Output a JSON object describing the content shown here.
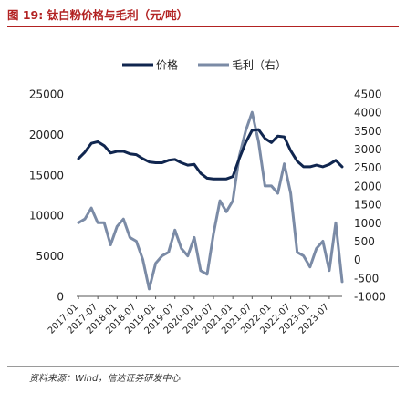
{
  "title": "图 19: 钛白粉价格与毛利（元/吨）",
  "source": "资料来源：Wind，信达证券研发中心",
  "colors": {
    "title": "#b22222",
    "price": "#10264f",
    "margin": "#7b8ba6",
    "text": "#222222"
  },
  "chart_data": {
    "type": "line",
    "legend": {
      "position": "top-center",
      "entries": [
        "价格",
        "毛利（右）"
      ]
    },
    "grid": false,
    "x_tick_labels": [
      "2017-01",
      "2017-07",
      "2018-01",
      "2018-07",
      "2019-01",
      "2019-07",
      "2020-01",
      "2020-07",
      "2021-01",
      "2021-07",
      "2022-01",
      "2022-07",
      "2023-01",
      "2023-07"
    ],
    "ylim_left": [
      0,
      25000
    ],
    "yticks_left": [
      "25000",
      "20000",
      "15000",
      "10000",
      "5000",
      "0"
    ],
    "ylim_right": [
      -1000,
      4500
    ],
    "yticks_right": [
      "4500",
      "4000",
      "3500",
      "3000",
      "2500",
      "2000",
      "1500",
      "1000",
      "500",
      "0",
      "-500",
      "-1000"
    ],
    "series": [
      {
        "name": "价格",
        "axis": "left",
        "x": [
          "2017-01",
          "2017-03",
          "2017-05",
          "2017-07",
          "2017-09",
          "2017-11",
          "2018-01",
          "2018-03",
          "2018-05",
          "2018-07",
          "2018-09",
          "2018-11",
          "2019-01",
          "2019-03",
          "2019-05",
          "2019-07",
          "2019-09",
          "2019-11",
          "2020-01",
          "2020-03",
          "2020-05",
          "2020-07",
          "2020-09",
          "2020-11",
          "2021-01",
          "2021-03",
          "2021-05",
          "2021-07",
          "2021-09",
          "2021-11",
          "2022-01",
          "2022-03",
          "2022-05",
          "2022-07",
          "2022-09",
          "2022-11",
          "2023-01",
          "2023-03",
          "2023-05",
          "2023-07",
          "2023-09",
          "2023-11"
        ],
        "values": [
          17000,
          17800,
          18900,
          19100,
          18600,
          17700,
          17900,
          17900,
          17600,
          17500,
          17000,
          16600,
          16500,
          16500,
          16800,
          16900,
          16500,
          16200,
          16300,
          15200,
          14600,
          14500,
          14500,
          14500,
          14800,
          17000,
          19000,
          20500,
          20600,
          19500,
          19000,
          19800,
          19700,
          18000,
          16700,
          16000,
          16000,
          16200,
          16000,
          16300,
          16800,
          16000
        ]
      },
      {
        "name": "毛利（右）",
        "axis": "right",
        "x": [
          "2017-01",
          "2017-03",
          "2017-05",
          "2017-07",
          "2017-09",
          "2017-11",
          "2018-01",
          "2018-03",
          "2018-05",
          "2018-07",
          "2018-09",
          "2018-11",
          "2019-01",
          "2019-03",
          "2019-05",
          "2019-07",
          "2019-09",
          "2019-11",
          "2020-01",
          "2020-03",
          "2020-05",
          "2020-07",
          "2020-09",
          "2020-11",
          "2021-01",
          "2021-03",
          "2021-05",
          "2021-07",
          "2021-09",
          "2021-11",
          "2022-01",
          "2022-03",
          "2022-05",
          "2022-07",
          "2022-09",
          "2022-11",
          "2023-01",
          "2023-03",
          "2023-05",
          "2023-07",
          "2023-09",
          "2023-11"
        ],
        "values": [
          1000,
          1100,
          1400,
          1000,
          1000,
          400,
          900,
          1100,
          600,
          500,
          0,
          -800,
          -100,
          100,
          200,
          800,
          300,
          100,
          600,
          -300,
          -400,
          700,
          1600,
          1300,
          1600,
          2800,
          3500,
          4000,
          3200,
          2000,
          2000,
          1800,
          2600,
          1800,
          200,
          100,
          -200,
          300,
          500,
          -300,
          1000,
          -600
        ]
      }
    ]
  }
}
